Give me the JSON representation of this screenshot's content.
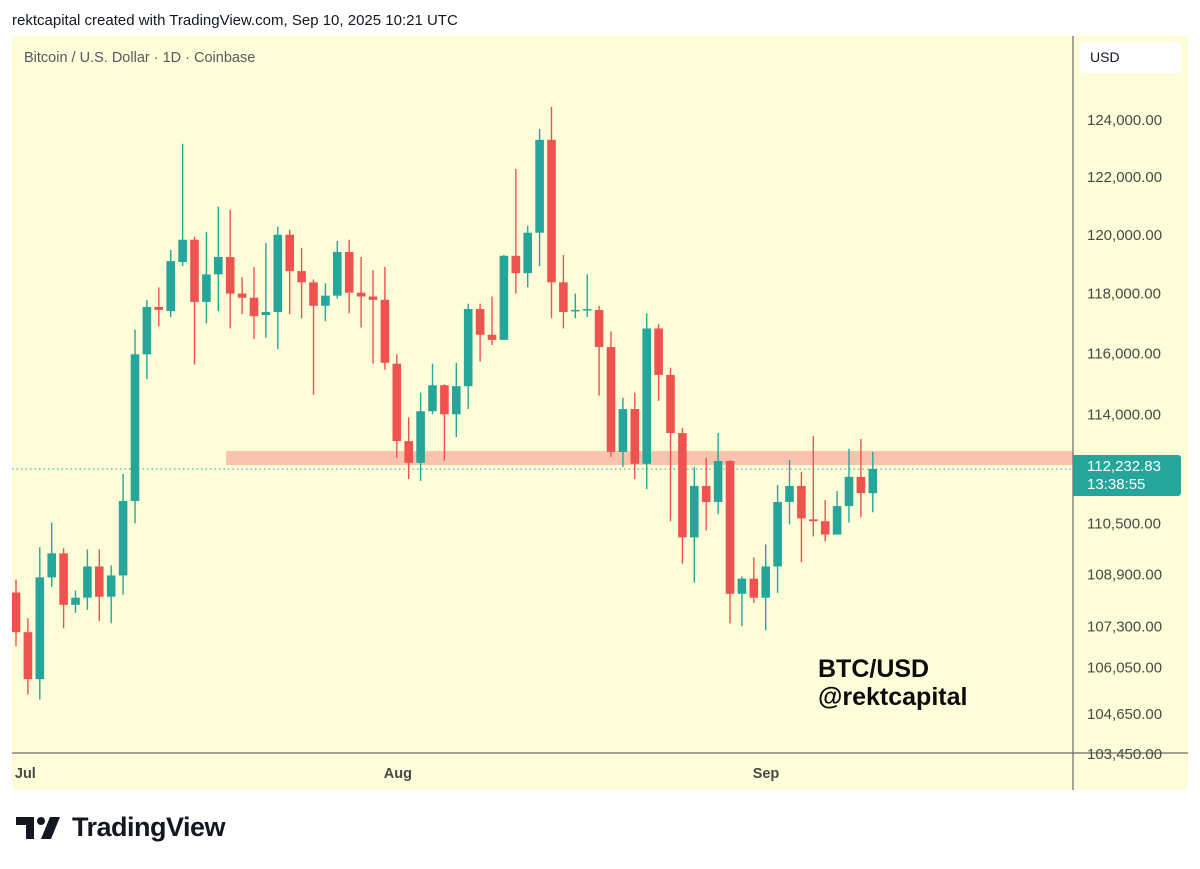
{
  "header": {
    "attribution": "rektcapital created with TradingView.com, Sep 10, 2025 10:21 UTC"
  },
  "symbol_info": "Bitcoin / U.S. Dollar · 1D · Coinbase",
  "currency_button": "USD",
  "current_price": {
    "price": "112,232.83",
    "countdown": "13:38:55"
  },
  "watermark": {
    "line1": "BTC/USD",
    "line2": "@rektcapital"
  },
  "logo": {
    "text": "TradingView"
  },
  "colors": {
    "up": "#26a69a",
    "down": "#ef5350",
    "background": "#fdfdda",
    "zone": "#f9b9a4"
  },
  "chart_data": {
    "type": "candlestick",
    "title": "",
    "scale": "log",
    "ylim": [
      103450,
      124900
    ],
    "y_ticks": [
      {
        "value": 124000,
        "label": "124,000.00"
      },
      {
        "value": 122000,
        "label": "122,000.00"
      },
      {
        "value": 120000,
        "label": "120,000.00"
      },
      {
        "value": 118000,
        "label": "118,000.00"
      },
      {
        "value": 116000,
        "label": "116,000.00"
      },
      {
        "value": 114000,
        "label": "114,000.00"
      },
      {
        "value": 110500,
        "label": "110,500.00"
      },
      {
        "value": 108900,
        "label": "108,900.00"
      },
      {
        "value": 107300,
        "label": "107,300.00"
      },
      {
        "value": 106050,
        "label": "106,050.00"
      },
      {
        "value": 104650,
        "label": "104,650.00"
      },
      {
        "value": 103450,
        "label": "103,450.00"
      }
    ],
    "x_ticks": [
      {
        "date": "2025-07-01",
        "label": "Jul"
      },
      {
        "date": "2025-08-01",
        "label": "Aug"
      },
      {
        "date": "2025-09-01",
        "label": "Sep"
      }
    ],
    "grid": false,
    "current_price_line": 112232.83,
    "resistance_zone": {
      "from_date": "2025-07-18",
      "low": 112360,
      "high": 112810
    },
    "columns": [
      "date",
      "open",
      "high",
      "low",
      "close"
    ],
    "candles": [
      [
        "2025-06-30",
        108340,
        108740,
        106690,
        107120
      ],
      [
        "2025-07-01",
        107120,
        107550,
        105230,
        105690
      ],
      [
        "2025-07-02",
        105690,
        109750,
        105080,
        108810
      ],
      [
        "2025-07-03",
        108810,
        110530,
        108520,
        109560
      ],
      [
        "2025-07-04",
        109560,
        109720,
        107240,
        107960
      ],
      [
        "2025-07-05",
        107960,
        108400,
        107710,
        108180
      ],
      [
        "2025-07-06",
        108180,
        109680,
        107800,
        109150
      ],
      [
        "2025-07-07",
        109150,
        109680,
        107460,
        108210
      ],
      [
        "2025-07-08",
        108210,
        109180,
        107390,
        108870
      ],
      [
        "2025-07-09",
        108870,
        112070,
        108270,
        111210
      ],
      [
        "2025-07-10",
        111210,
        116790,
        110500,
        115970
      ],
      [
        "2025-07-11",
        115970,
        117790,
        115150,
        117550
      ],
      [
        "2025-07-12",
        117550,
        118210,
        116900,
        117450
      ],
      [
        "2025-07-13",
        117410,
        119480,
        117210,
        119100
      ],
      [
        "2025-07-14",
        119070,
        123160,
        118930,
        119830
      ],
      [
        "2025-07-15",
        119830,
        119930,
        115630,
        117720
      ],
      [
        "2025-07-16",
        117720,
        120100,
        117000,
        118650
      ],
      [
        "2025-07-17",
        118650,
        120970,
        117410,
        119240
      ],
      [
        "2025-07-18",
        119240,
        120860,
        116830,
        118000
      ],
      [
        "2025-07-19",
        118000,
        118550,
        117310,
        117860
      ],
      [
        "2025-07-20",
        117860,
        118900,
        116480,
        117240
      ],
      [
        "2025-07-21",
        117280,
        119720,
        116520,
        117380
      ],
      [
        "2025-07-22",
        117380,
        120280,
        116140,
        120000
      ],
      [
        "2025-07-23",
        120000,
        120170,
        117310,
        118760
      ],
      [
        "2025-07-24",
        118760,
        119550,
        117170,
        118380
      ],
      [
        "2025-07-25",
        118380,
        118480,
        114640,
        117590
      ],
      [
        "2025-07-26",
        117590,
        118350,
        117070,
        117930
      ],
      [
        "2025-07-27",
        117930,
        119790,
        117830,
        119410
      ],
      [
        "2025-07-28",
        119410,
        119830,
        117340,
        118030
      ],
      [
        "2025-07-29",
        118030,
        119240,
        116860,
        117900
      ],
      [
        "2025-07-30",
        117900,
        118790,
        115660,
        117790
      ],
      [
        "2025-07-31",
        117790,
        118900,
        115460,
        115690
      ],
      [
        "2025-08-01",
        115660,
        115970,
        112590,
        113130
      ],
      [
        "2025-08-02",
        113130,
        113900,
        111910,
        112430
      ],
      [
        "2025-08-03",
        112430,
        114710,
        111850,
        114100
      ],
      [
        "2025-08-04",
        114100,
        115660,
        114000,
        114950
      ],
      [
        "2025-08-05",
        114950,
        114980,
        112490,
        114000
      ],
      [
        "2025-08-06",
        114000,
        115690,
        113260,
        114920
      ],
      [
        "2025-08-07",
        114920,
        117660,
        114170,
        117480
      ],
      [
        "2025-08-08",
        117480,
        117660,
        115730,
        116620
      ],
      [
        "2025-08-09",
        116620,
        117900,
        116280,
        116450
      ],
      [
        "2025-08-10",
        116450,
        119310,
        116450,
        119280
      ],
      [
        "2025-08-11",
        119280,
        122280,
        118000,
        118690
      ],
      [
        "2025-08-12",
        118690,
        120310,
        118210,
        120070
      ],
      [
        "2025-08-13",
        120070,
        123680,
        118930,
        123300
      ],
      [
        "2025-08-14",
        123300,
        124460,
        117170,
        118380
      ],
      [
        "2025-08-15",
        118380,
        119310,
        116830,
        117380
      ],
      [
        "2025-08-16",
        117410,
        118000,
        117170,
        117450
      ],
      [
        "2025-08-17",
        117450,
        118650,
        117210,
        117480
      ],
      [
        "2025-08-18",
        117450,
        117590,
        114610,
        116210
      ],
      [
        "2025-08-19",
        116210,
        116730,
        112620,
        112780
      ],
      [
        "2025-08-20",
        112780,
        114540,
        112300,
        114170
      ],
      [
        "2025-08-21",
        114170,
        114710,
        111910,
        112400
      ],
      [
        "2025-08-22",
        112400,
        117340,
        111590,
        116830
      ],
      [
        "2025-08-23",
        116830,
        116970,
        114440,
        115290
      ],
      [
        "2025-08-24",
        115290,
        115530,
        110570,
        113390
      ],
      [
        "2025-08-25",
        113390,
        113550,
        109240,
        110060
      ],
      [
        "2025-08-26",
        110060,
        112300,
        108650,
        111690
      ],
      [
        "2025-08-27",
        111690,
        112590,
        110280,
        111180
      ],
      [
        "2025-08-28",
        111180,
        113390,
        110790,
        112490
      ],
      [
        "2025-08-29",
        112490,
        112520,
        107390,
        108300
      ],
      [
        "2025-08-30",
        108300,
        108840,
        107300,
        108770
      ],
      [
        "2025-08-31",
        108770,
        109430,
        108020,
        108180
      ],
      [
        "2025-09-01",
        108180,
        109840,
        107180,
        109150
      ],
      [
        "2025-09-02",
        109150,
        111720,
        108330,
        111180
      ],
      [
        "2025-09-03",
        111180,
        112520,
        110470,
        111690
      ],
      [
        "2025-09-04",
        111690,
        112140,
        109280,
        110660
      ],
      [
        "2025-09-05",
        110630,
        113290,
        110090,
        110570
      ],
      [
        "2025-09-06",
        110570,
        111240,
        109930,
        110150
      ],
      [
        "2025-09-07",
        110150,
        111530,
        110150,
        111050
      ],
      [
        "2025-09-08",
        111050,
        112880,
        110530,
        111980
      ],
      [
        "2025-09-09",
        111980,
        113200,
        110690,
        111460
      ],
      [
        "2025-09-10",
        111460,
        112780,
        110850,
        112232.83
      ]
    ]
  }
}
